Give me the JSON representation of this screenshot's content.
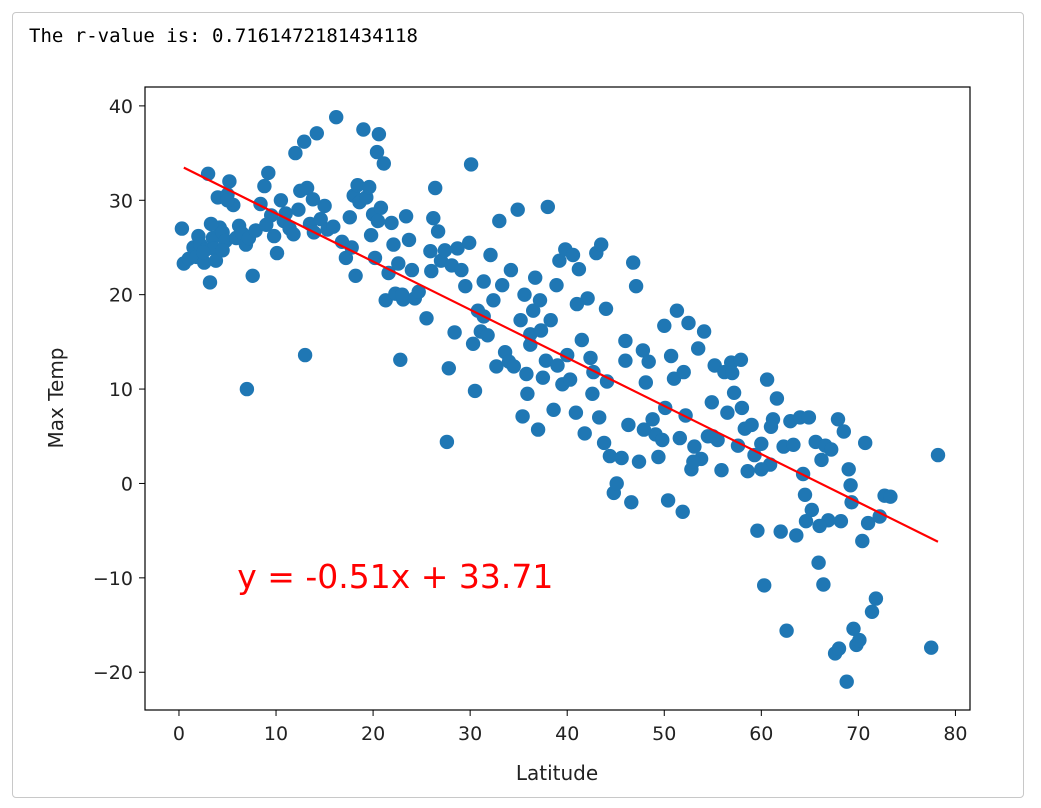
{
  "output": {
    "text": "The r-value is: 0.7161472181434118"
  },
  "colors": {
    "points": "#1f77b4",
    "regression_line": "#ff0000",
    "annotation": "#ff0000",
    "axes": "#000000",
    "text": "#222222"
  },
  "chart_data": {
    "type": "scatter",
    "title": "",
    "xlabel": "Latitude",
    "ylabel": "Max Temp",
    "xlim": [
      -3.5,
      81.5
    ],
    "ylim": [
      -24,
      42
    ],
    "xticks": [
      0,
      10,
      20,
      30,
      40,
      50,
      60,
      70,
      80
    ],
    "yticks": [
      -20,
      -10,
      0,
      10,
      20,
      30,
      40
    ],
    "xtick_labels": [
      "0",
      "10",
      "20",
      "30",
      "40",
      "50",
      "60",
      "70",
      "80"
    ],
    "ytick_labels": [
      "−20",
      "−10",
      "0",
      "10",
      "20",
      "30",
      "40"
    ],
    "grid": false,
    "annotation": {
      "text": "y = -0.51x + 33.71",
      "x": 6,
      "y": -10
    },
    "regression": {
      "slope": -0.51,
      "intercept": 33.71,
      "x_range": [
        0.5,
        78.2
      ]
    },
    "points": [
      [
        0.3,
        27.0
      ],
      [
        0.5,
        23.3
      ],
      [
        1.0,
        23.8
      ],
      [
        1.5,
        25.0
      ],
      [
        1.8,
        24.0
      ],
      [
        2.0,
        26.2
      ],
      [
        2.2,
        25.3
      ],
      [
        2.6,
        23.4
      ],
      [
        2.8,
        24.8
      ],
      [
        3.0,
        32.8
      ],
      [
        3.2,
        21.3
      ],
      [
        3.5,
        26.0
      ],
      [
        3.6,
        24.9
      ],
      [
        3.8,
        23.6
      ],
      [
        4.0,
        30.3
      ],
      [
        4.2,
        27.1
      ],
      [
        4.5,
        26.6
      ],
      [
        4.8,
        25.7
      ],
      [
        5.0,
        30.6
      ],
      [
        5.2,
        32.0
      ],
      [
        5.6,
        29.5
      ],
      [
        5.9,
        26.0
      ],
      [
        6.2,
        27.3
      ],
      [
        6.5,
        26.5
      ],
      [
        6.9,
        25.3
      ],
      [
        7.2,
        26.0
      ],
      [
        7.0,
        10.0
      ],
      [
        7.6,
        22.0
      ],
      [
        7.9,
        26.8
      ],
      [
        8.4,
        29.6
      ],
      [
        8.8,
        31.5
      ],
      [
        9.2,
        32.9
      ],
      [
        9.5,
        28.4
      ],
      [
        9.8,
        26.2
      ],
      [
        10.1,
        24.4
      ],
      [
        10.5,
        30.0
      ],
      [
        10.8,
        27.8
      ],
      [
        11.0,
        28.6
      ],
      [
        11.4,
        27.0
      ],
      [
        11.8,
        26.4
      ],
      [
        12.0,
        35.0
      ],
      [
        12.3,
        29.0
      ],
      [
        12.5,
        31.0
      ],
      [
        12.9,
        36.2
      ],
      [
        13.0,
        13.6
      ],
      [
        13.2,
        31.3
      ],
      [
        13.5,
        27.5
      ],
      [
        13.9,
        26.6
      ],
      [
        14.2,
        37.1
      ],
      [
        14.6,
        28.0
      ],
      [
        15.0,
        29.4
      ],
      [
        15.3,
        26.9
      ],
      [
        16.2,
        38.8
      ],
      [
        16.8,
        25.6
      ],
      [
        17.2,
        23.9
      ],
      [
        17.6,
        28.2
      ],
      [
        18.0,
        30.5
      ],
      [
        18.2,
        22.0
      ],
      [
        18.4,
        31.6
      ],
      [
        18.6,
        29.8
      ],
      [
        19.0,
        37.5
      ],
      [
        19.3,
        30.3
      ],
      [
        19.6,
        31.4
      ],
      [
        19.8,
        26.3
      ],
      [
        20.0,
        28.5
      ],
      [
        20.2,
        23.9
      ],
      [
        20.4,
        35.1
      ],
      [
        20.6,
        37.0
      ],
      [
        20.8,
        29.2
      ],
      [
        21.1,
        33.9
      ],
      [
        21.3,
        19.4
      ],
      [
        21.6,
        22.3
      ],
      [
        21.9,
        27.6
      ],
      [
        22.1,
        25.3
      ],
      [
        22.3,
        20.1
      ],
      [
        22.6,
        23.3
      ],
      [
        22.8,
        13.1
      ],
      [
        23.1,
        19.5
      ],
      [
        23.4,
        28.3
      ],
      [
        23.7,
        25.8
      ],
      [
        24.0,
        22.6
      ],
      [
        24.3,
        19.6
      ],
      [
        24.7,
        20.3
      ],
      [
        25.5,
        17.5
      ],
      [
        25.9,
        24.6
      ],
      [
        26.2,
        28.1
      ],
      [
        26.4,
        31.3
      ],
      [
        26.7,
        26.7
      ],
      [
        27.0,
        23.6
      ],
      [
        27.4,
        24.7
      ],
      [
        27.6,
        4.4
      ],
      [
        27.8,
        12.2
      ],
      [
        28.1,
        23.1
      ],
      [
        28.4,
        16.0
      ],
      [
        28.7,
        24.9
      ],
      [
        29.1,
        22.6
      ],
      [
        29.5,
        20.9
      ],
      [
        29.9,
        25.5
      ],
      [
        30.1,
        33.8
      ],
      [
        30.3,
        14.8
      ],
      [
        30.5,
        9.8
      ],
      [
        30.8,
        18.3
      ],
      [
        31.1,
        16.1
      ],
      [
        31.4,
        21.4
      ],
      [
        31.8,
        15.7
      ],
      [
        32.1,
        24.2
      ],
      [
        32.4,
        19.4
      ],
      [
        32.7,
        12.4
      ],
      [
        33.0,
        27.8
      ],
      [
        33.3,
        21.0
      ],
      [
        33.6,
        13.9
      ],
      [
        34.0,
        12.9
      ],
      [
        34.5,
        12.4
      ],
      [
        34.9,
        29.0
      ],
      [
        35.2,
        17.3
      ],
      [
        35.4,
        7.1
      ],
      [
        35.6,
        20.0
      ],
      [
        35.9,
        9.5
      ],
      [
        36.2,
        14.7
      ],
      [
        36.5,
        18.3
      ],
      [
        36.7,
        21.8
      ],
      [
        37.0,
        5.7
      ],
      [
        37.2,
        19.4
      ],
      [
        37.5,
        11.2
      ],
      [
        37.8,
        13.0
      ],
      [
        38.0,
        29.3
      ],
      [
        38.3,
        17.3
      ],
      [
        38.6,
        7.8
      ],
      [
        38.9,
        21.0
      ],
      [
        39.2,
        23.6
      ],
      [
        39.5,
        10.5
      ],
      [
        39.8,
        24.8
      ],
      [
        40.0,
        13.6
      ],
      [
        40.3,
        11.0
      ],
      [
        40.6,
        24.2
      ],
      [
        40.9,
        7.5
      ],
      [
        41.2,
        22.7
      ],
      [
        41.5,
        15.2
      ],
      [
        41.8,
        5.3
      ],
      [
        42.1,
        19.6
      ],
      [
        42.4,
        13.3
      ],
      [
        42.7,
        11.8
      ],
      [
        43.0,
        24.4
      ],
      [
        43.3,
        7.0
      ],
      [
        43.5,
        25.3
      ],
      [
        43.8,
        4.3
      ],
      [
        44.1,
        10.8
      ],
      [
        44.4,
        2.9
      ],
      [
        44.8,
        -1.0
      ],
      [
        45.1,
        0.0
      ],
      [
        45.6,
        2.7
      ],
      [
        46.0,
        15.1
      ],
      [
        46.3,
        6.2
      ],
      [
        46.6,
        -2.0
      ],
      [
        46.8,
        23.4
      ],
      [
        47.1,
        20.9
      ],
      [
        47.4,
        2.3
      ],
      [
        47.8,
        14.1
      ],
      [
        48.1,
        10.7
      ],
      [
        48.4,
        12.9
      ],
      [
        48.8,
        6.8
      ],
      [
        49.1,
        5.2
      ],
      [
        49.4,
        2.8
      ],
      [
        49.8,
        4.6
      ],
      [
        50.1,
        8.0
      ],
      [
        50.4,
        -1.8
      ],
      [
        50.7,
        13.5
      ],
      [
        51.0,
        11.1
      ],
      [
        51.3,
        18.3
      ],
      [
        51.6,
        4.8
      ],
      [
        51.9,
        -3.0
      ],
      [
        52.2,
        7.2
      ],
      [
        52.5,
        17.0
      ],
      [
        52.8,
        1.5
      ],
      [
        53.1,
        3.9
      ],
      [
        53.5,
        14.3
      ],
      [
        53.8,
        2.6
      ],
      [
        54.1,
        16.1
      ],
      [
        54.5,
        5.0
      ],
      [
        54.9,
        8.6
      ],
      [
        55.2,
        12.5
      ],
      [
        55.5,
        4.6
      ],
      [
        55.9,
        1.4
      ],
      [
        56.2,
        11.8
      ],
      [
        56.5,
        7.5
      ],
      [
        56.9,
        12.8
      ],
      [
        57.2,
        9.6
      ],
      [
        57.6,
        4.0
      ],
      [
        57.9,
        13.1
      ],
      [
        58.3,
        5.8
      ],
      [
        58.6,
        1.3
      ],
      [
        59.0,
        6.2
      ],
      [
        59.3,
        3.0
      ],
      [
        59.6,
        -5.0
      ],
      [
        60.0,
        4.2
      ],
      [
        60.3,
        -10.8
      ],
      [
        60.6,
        11.0
      ],
      [
        60.9,
        2.0
      ],
      [
        61.2,
        6.8
      ],
      [
        61.6,
        9.0
      ],
      [
        62.0,
        -5.1
      ],
      [
        62.3,
        3.9
      ],
      [
        62.6,
        -15.6
      ],
      [
        63.0,
        6.6
      ],
      [
        63.3,
        4.1
      ],
      [
        63.6,
        -5.5
      ],
      [
        64.0,
        7.0
      ],
      [
        64.3,
        1.0
      ],
      [
        64.6,
        -4.0
      ],
      [
        64.9,
        7.0
      ],
      [
        65.2,
        -2.8
      ],
      [
        65.6,
        4.4
      ],
      [
        65.9,
        -8.4
      ],
      [
        66.2,
        2.5
      ],
      [
        66.4,
        -10.7
      ],
      [
        66.6,
        4.0
      ],
      [
        66.9,
        -3.9
      ],
      [
        67.2,
        3.6
      ],
      [
        67.6,
        -18.0
      ],
      [
        67.9,
        6.8
      ],
      [
        68.2,
        -4.0
      ],
      [
        68.5,
        5.5
      ],
      [
        68.8,
        -21.0
      ],
      [
        69.0,
        1.5
      ],
      [
        69.3,
        -2.0
      ],
      [
        69.5,
        -15.4
      ],
      [
        69.8,
        -17.1
      ],
      [
        70.1,
        -16.6
      ],
      [
        70.4,
        -6.1
      ],
      [
        70.7,
        4.3
      ],
      [
        71.0,
        -4.2
      ],
      [
        71.4,
        -13.6
      ],
      [
        71.8,
        -12.2
      ],
      [
        72.2,
        -3.5
      ],
      [
        72.7,
        -1.3
      ],
      [
        73.3,
        -1.4
      ],
      [
        77.5,
        -17.4
      ],
      [
        78.2,
        3.0
      ],
      [
        55.0,
        5.0
      ],
      [
        44.0,
        18.5
      ],
      [
        23.0,
        20.0
      ],
      [
        15.9,
        27.2
      ],
      [
        9.0,
        27.4
      ],
      [
        5.0,
        30.0
      ],
      [
        36.2,
        15.8
      ],
      [
        39.0,
        12.5
      ],
      [
        41.0,
        19.0
      ],
      [
        46.0,
        13.0
      ],
      [
        50.0,
        16.7
      ],
      [
        52.0,
        11.8
      ],
      [
        57.0,
        11.7
      ],
      [
        58.0,
        8.0
      ],
      [
        60.0,
        1.5
      ],
      [
        64.5,
        -1.2
      ],
      [
        68.0,
        -17.5
      ],
      [
        2.5,
        24.5
      ],
      [
        3.3,
        27.5
      ],
      [
        4.5,
        24.7
      ],
      [
        13.8,
        30.1
      ],
      [
        17.8,
        25.0
      ],
      [
        20.5,
        27.8
      ],
      [
        26.0,
        22.5
      ],
      [
        31.4,
        17.7
      ],
      [
        34.2,
        22.6
      ],
      [
        35.8,
        11.6
      ],
      [
        37.3,
        16.2
      ],
      [
        42.6,
        9.5
      ],
      [
        47.9,
        5.7
      ],
      [
        53.0,
        2.3
      ],
      [
        61.0,
        6.0
      ],
      [
        66.0,
        -4.5
      ],
      [
        69.2,
        -0.2
      ]
    ]
  }
}
